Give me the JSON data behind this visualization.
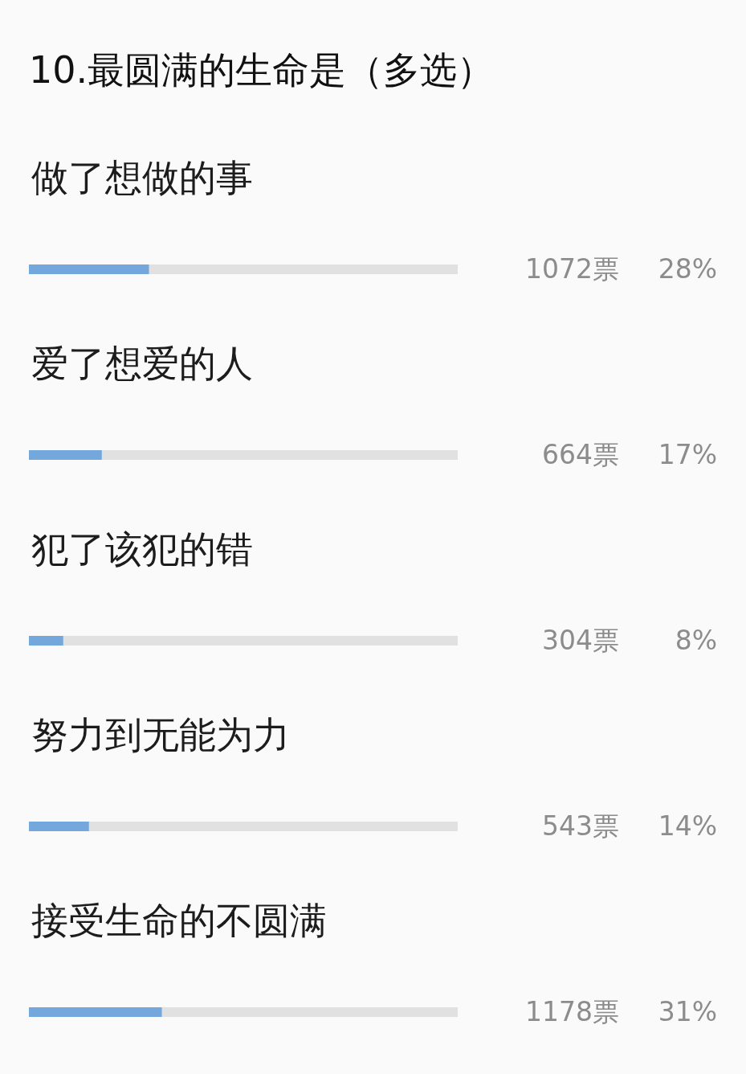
{
  "chart_data": {
    "type": "bar",
    "title": "10.最圆满的生命是（多选）",
    "orientation": "horizontal",
    "categories": [
      "做了想做的事",
      "爱了想爱的人",
      "犯了该犯的错",
      "努力到无能为力",
      "接受生命的不圆满"
    ],
    "values": [
      28,
      17,
      8,
      14,
      31
    ],
    "value_labels": [
      "28%",
      "17%",
      "8%",
      "14%",
      "31%"
    ],
    "color": "#74a8dc",
    "xlim": [
      0,
      100
    ],
    "annotations": [
      "1072票",
      "664票",
      "304票",
      "543票",
      "1178票"
    ]
  }
}
